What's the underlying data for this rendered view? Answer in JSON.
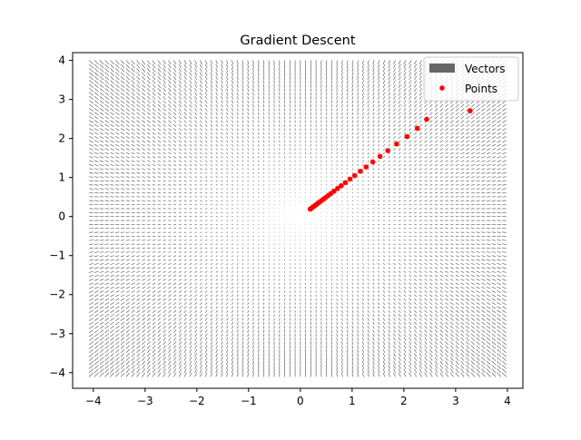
{
  "chart_data": {
    "type": "scatter",
    "title": "Gradient Descent",
    "xlabel": "",
    "ylabel": "",
    "xlim": [
      -4.4,
      4.3
    ],
    "ylim": [
      -4.4,
      4.2
    ],
    "xticks": [
      -4,
      -3,
      -2,
      -1,
      0,
      1,
      2,
      3,
      4
    ],
    "yticks": [
      -4,
      -3,
      -2,
      -1,
      0,
      1,
      2,
      3,
      4
    ],
    "xtick_labels": [
      "−4",
      "−3",
      "−2",
      "−1",
      "0",
      "1",
      "2",
      "3",
      "4"
    ],
    "ytick_labels": [
      "−4",
      "−3",
      "−2",
      "−1",
      "0",
      "1",
      "2",
      "3",
      "4"
    ],
    "grid": false,
    "legend": {
      "placement": "top-right",
      "entries": [
        {
          "label": "Vectors",
          "marker": "patch",
          "color": "#666666"
        },
        {
          "label": "Points",
          "marker": "dot",
          "color": "#ff0000"
        }
      ]
    },
    "vector_field": {
      "name": "Vectors",
      "color": "#666666",
      "x_range": [
        -4.0,
        3.9
      ],
      "y_range": [
        -4.0,
        3.9
      ],
      "step": 0.1,
      "direction": "radial outward (gradient)"
    },
    "series": [
      {
        "name": "Points",
        "color": "#ff0000",
        "points": [
          [
            3.28,
            2.71
          ],
          [
            2.44,
            2.49
          ],
          [
            2.26,
            2.26
          ],
          [
            2.06,
            2.05
          ],
          [
            1.86,
            1.86
          ],
          [
            1.69,
            1.69
          ],
          [
            1.54,
            1.54
          ],
          [
            1.4,
            1.4
          ],
          [
            1.27,
            1.27
          ],
          [
            1.16,
            1.16
          ],
          [
            1.05,
            1.05
          ],
          [
            0.96,
            0.96
          ],
          [
            0.87,
            0.87
          ],
          [
            0.79,
            0.79
          ],
          [
            0.72,
            0.72
          ],
          [
            0.65,
            0.65
          ],
          [
            0.59,
            0.59
          ],
          [
            0.54,
            0.54
          ],
          [
            0.49,
            0.49
          ],
          [
            0.45,
            0.45
          ],
          [
            0.41,
            0.41
          ],
          [
            0.37,
            0.37
          ],
          [
            0.34,
            0.34
          ],
          [
            0.31,
            0.31
          ],
          [
            0.28,
            0.28
          ],
          [
            0.26,
            0.26
          ],
          [
            0.24,
            0.24
          ],
          [
            0.22,
            0.22
          ],
          [
            0.2,
            0.2
          ],
          [
            0.19,
            0.19
          ]
        ]
      }
    ]
  }
}
